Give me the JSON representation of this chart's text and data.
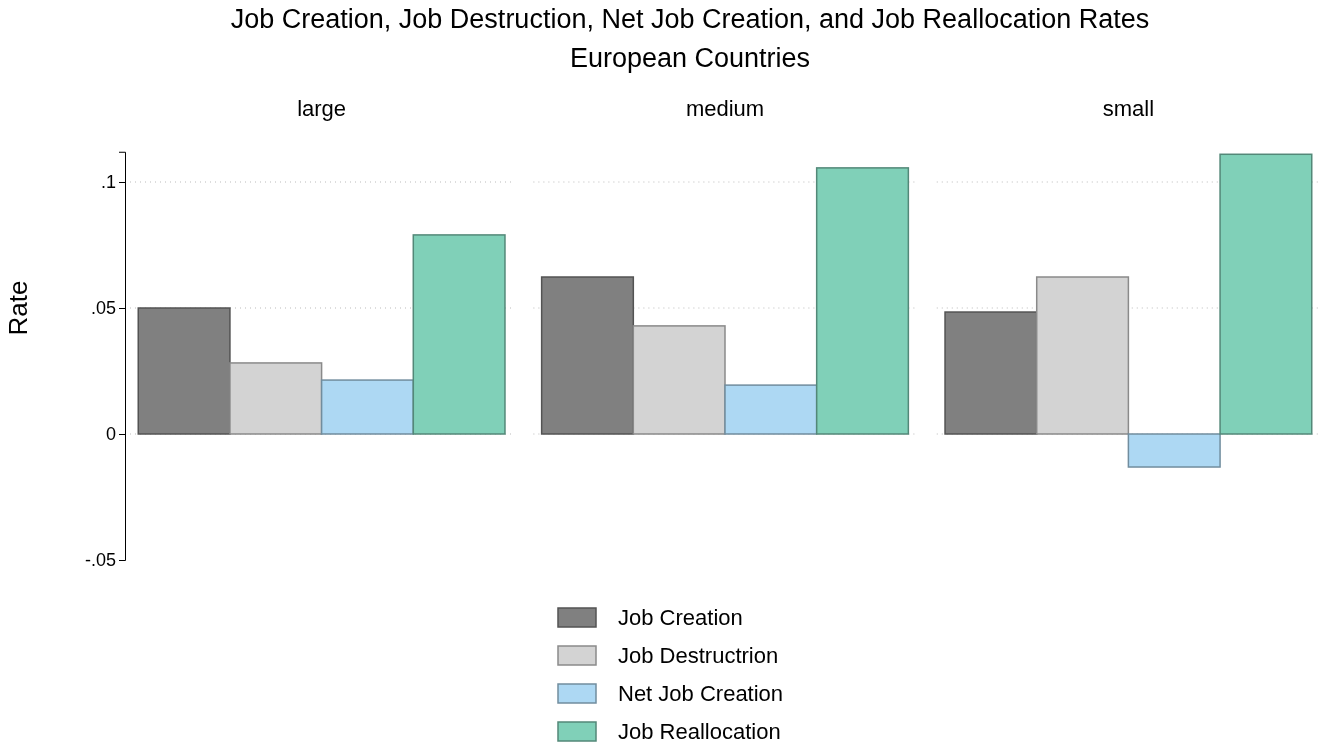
{
  "chart_data": {
    "type": "bar",
    "title": "Job Creation, Job Destruction, Net Job Creation, and Job Reallocation Rates",
    "subtitle": "European Countries",
    "ylabel": "Rate",
    "categories": [
      "large",
      "medium",
      "small"
    ],
    "series": [
      {
        "name": "Job Creation",
        "color": "#808080",
        "values": [
          0.05,
          0.0623,
          0.0484
        ]
      },
      {
        "name": "Job Destructrion",
        "color": "#d3d3d3",
        "values": [
          0.0282,
          0.0429,
          0.0623
        ]
      },
      {
        "name": "Net Job Creation",
        "color": "#add8f3",
        "values": [
          0.0214,
          0.0194,
          -0.0131
        ]
      },
      {
        "name": "Job Reallocation",
        "color": "#80d0b8",
        "values": [
          0.079,
          0.1056,
          0.111
        ]
      }
    ],
    "ylim": [
      -0.05,
      0.112
    ],
    "yticks": [
      {
        "value": -0.05,
        "label": "-.05"
      },
      0,
      {
        "value": 0.05,
        "label": ".05"
      },
      {
        "value": 0.1,
        "label": ".1"
      }
    ],
    "grid": "y",
    "legend": "bottom"
  }
}
